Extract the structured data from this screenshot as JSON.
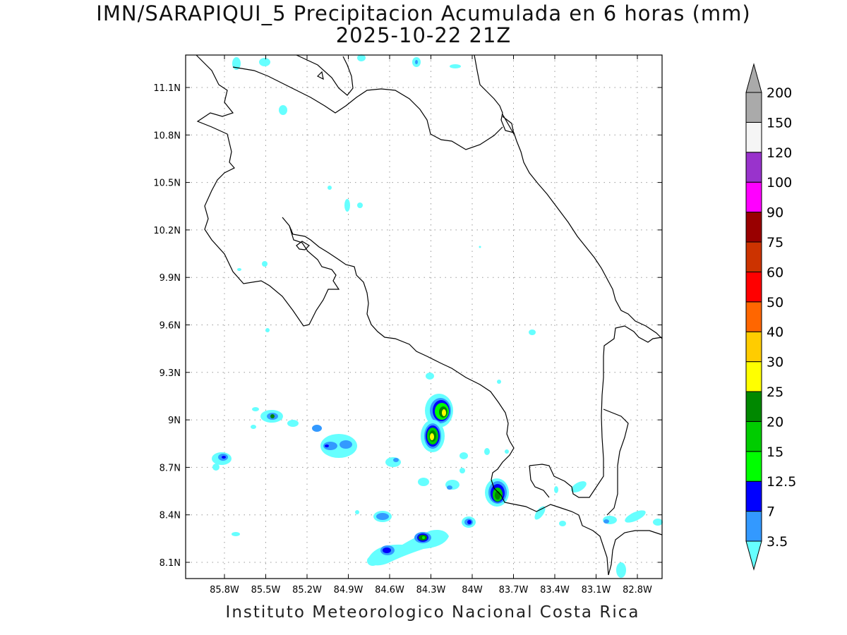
{
  "title_line1": "IMN/SARAPIQUI_5 Precipitacion Acumulada en 6 horas (mm)",
  "title_line2": "2025-10-22 21Z",
  "footer": "Instituto Meteorologico Nacional Costa Rica",
  "map": {
    "lon_range": [
      -86.0,
      -83.0
    ],
    "lat_range": [
      8.0,
      11.2
    ],
    "lon_ticks": [
      "85.8W",
      "85.5W",
      "85.2W",
      "84.9W",
      "84.6W",
      "84.3W",
      "84W",
      "83.7W",
      "83.4W",
      "83.1W",
      "82.8W"
    ],
    "lat_ticks": [
      "11.1N",
      "10.8N",
      "10.5N",
      "10.2N",
      "9.9N",
      "9.6N",
      "9.3N",
      "9N",
      "8.7N",
      "8.4N",
      "8.1N"
    ],
    "grid": "dotted"
  },
  "legend": {
    "labels": [
      "3.5",
      "7",
      "12.5",
      "15",
      "20",
      "25",
      "30",
      "40",
      "50",
      "60",
      "75",
      "90",
      "100",
      "120",
      "150",
      "200"
    ],
    "colors": [
      "#66ffff",
      "#3399ff",
      "#0000ff",
      "#00ff00",
      "#00cc00",
      "#008800",
      "#ffff00",
      "#ffcc00",
      "#ff6600",
      "#ff0000",
      "#cc3300",
      "#990000",
      "#ff00ff",
      "#9933cc",
      "#f5f5f5",
      "#aaaaaa"
    ]
  }
}
